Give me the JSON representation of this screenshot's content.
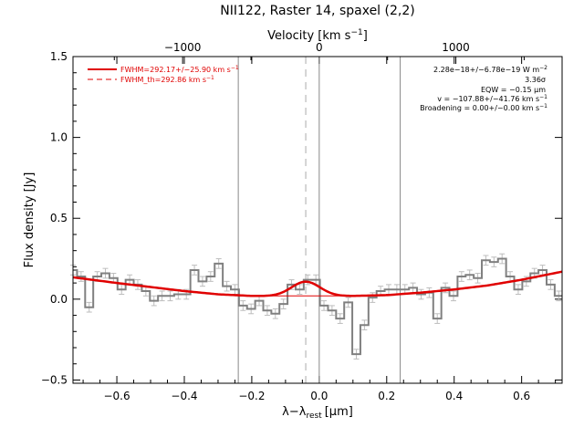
{
  "chart_data": {
    "type": "line",
    "title": "NII122, Raster 14, spaxel (2,2)",
    "xlabel_main": "λ−λ",
    "xlabel_sub": "rest",
    "xlabel_unit": "[μm]",
    "xlabel_unit_open": "[",
    "xlabel_unit_mu": "μ",
    "xlabel_unit_rest": "m]",
    "ylabel": "Flux density [Jy]",
    "top_axis_label": "Velocity [km s",
    "top_axis_exp": "−1",
    "top_axis_close": "]",
    "xlim": [
      -0.73,
      0.72
    ],
    "ylim": [
      -0.52,
      1.5
    ],
    "x_ticks": [
      -0.6,
      -0.4,
      -0.2,
      0.0,
      0.2,
      0.4,
      0.6
    ],
    "x_tick_labels": [
      "−0.6",
      "−0.4",
      "−0.2",
      "0.0",
      "0.2",
      "0.4",
      "0.6"
    ],
    "y_ticks": [
      -0.5,
      0.0,
      0.5,
      1.0,
      1.5
    ],
    "y_tick_labels": [
      "−0.5",
      "0.0",
      "0.5",
      "1.0",
      "1.5"
    ],
    "top_ticks_velocity": [
      -1000,
      0,
      1000
    ],
    "top_tick_labels": [
      "−1000",
      "0",
      "1000"
    ],
    "vertical_lines_solid": [
      -0.24,
      0.0,
      0.24
    ],
    "vertical_line_dashed": -0.04,
    "legend": {
      "fit_prefix": "FWHM=",
      "fit_value": "292.17+/−25.90 km s",
      "fit_exp": "−1",
      "th_prefix": "FWHM_th=",
      "th_value": "292.86 km s",
      "th_exp": "−1"
    },
    "annotations": {
      "line_flux": "2.28e−18+/−6.78e−19 W m",
      "line_flux_exp": "−2",
      "significance": "3.36σ",
      "eqw": "EQW = −0.15 μm",
      "velocity": "v = −107.88+/−41.76 km s",
      "velocity_exp": "−1",
      "broadening": "Broadening = 0.00+/−0.00 km s",
      "broadening_exp": "−1"
    },
    "spectrum": {
      "x": [
        -0.73,
        -0.706,
        -0.682,
        -0.658,
        -0.634,
        -0.61,
        -0.586,
        -0.562,
        -0.538,
        -0.514,
        -0.49,
        -0.466,
        -0.442,
        -0.418,
        -0.394,
        -0.37,
        -0.346,
        -0.322,
        -0.298,
        -0.274,
        -0.25,
        -0.226,
        -0.202,
        -0.178,
        -0.154,
        -0.13,
        -0.106,
        -0.082,
        -0.058,
        -0.034,
        -0.01,
        0.014,
        0.038,
        0.062,
        0.086,
        0.11,
        0.134,
        0.158,
        0.182,
        0.206,
        0.23,
        0.254,
        0.278,
        0.302,
        0.326,
        0.35,
        0.374,
        0.398,
        0.422,
        0.446,
        0.47,
        0.494,
        0.518,
        0.542,
        0.566,
        0.59,
        0.614,
        0.638,
        0.662,
        0.686,
        0.71
      ],
      "y": [
        0.18,
        0.14,
        -0.05,
        0.14,
        0.16,
        0.13,
        0.06,
        0.12,
        0.09,
        0.05,
        -0.01,
        0.02,
        0.02,
        0.03,
        0.03,
        0.18,
        0.11,
        0.14,
        0.22,
        0.08,
        0.06,
        -0.04,
        -0.06,
        -0.01,
        -0.07,
        -0.09,
        -0.03,
        0.09,
        0.06,
        0.12,
        0.12,
        -0.04,
        -0.07,
        -0.12,
        -0.02,
        -0.34,
        -0.16,
        0.01,
        0.05,
        0.06,
        0.06,
        0.06,
        0.07,
        0.03,
        0.04,
        -0.12,
        0.07,
        0.02,
        0.14,
        0.15,
        0.13,
        0.24,
        0.23,
        0.25,
        0.14,
        0.06,
        0.11,
        0.16,
        0.18,
        0.09,
        0.02
      ],
      "error": 0.03
    },
    "fit_baseline": {
      "x": [
        -0.73,
        -0.6,
        -0.5,
        -0.4,
        -0.3,
        -0.2,
        -0.1,
        0.0,
        0.1,
        0.2,
        0.3,
        0.4,
        0.5,
        0.6,
        0.72
      ],
      "y": [
        0.135,
        0.1,
        0.075,
        0.05,
        0.03,
        0.02,
        0.018,
        0.018,
        0.02,
        0.025,
        0.04,
        0.06,
        0.085,
        0.12,
        0.17
      ]
    },
    "gaussian": {
      "center": -0.04,
      "amplitude": 0.09,
      "fwhm": 0.1
    }
  }
}
